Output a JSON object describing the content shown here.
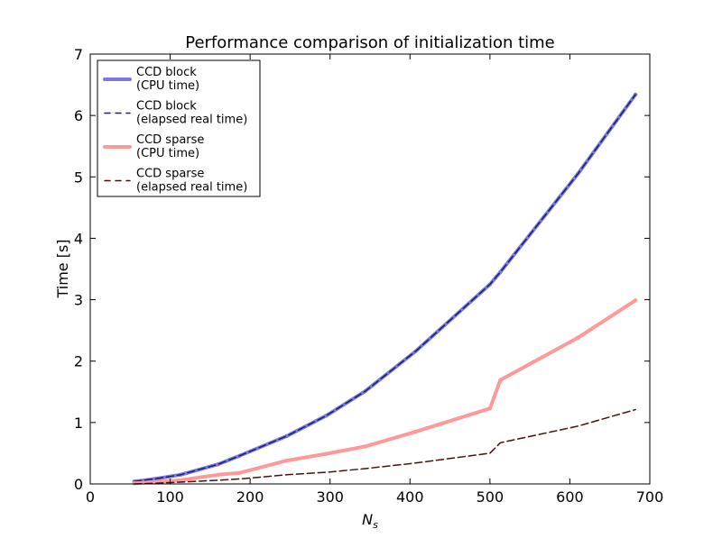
{
  "chart_data": {
    "type": "line",
    "title": "Performance comparison of initialization time",
    "xlabel": "N",
    "xlabel_sub": "s",
    "ylabel": "Time [s]",
    "xlim": [
      0,
      700
    ],
    "ylim": [
      0,
      7
    ],
    "xticks": [
      0,
      100,
      200,
      300,
      400,
      500,
      600,
      700
    ],
    "yticks": [
      0,
      1,
      2,
      3,
      4,
      5,
      6,
      7
    ],
    "grid": false,
    "legend_position": "top-left",
    "series": [
      {
        "name": "CCD block\n(CPU time)",
        "color": "#7b7bdd",
        "style": "solid-thick",
        "x": [
          55,
          80,
          113,
          160,
          187,
          246,
          295,
          344,
          407,
          500,
          513,
          610,
          682
        ],
        "y": [
          0.04,
          0.08,
          0.15,
          0.32,
          0.46,
          0.78,
          1.11,
          1.51,
          2.16,
          3.25,
          3.45,
          5.05,
          6.34
        ]
      },
      {
        "name": "CCD block\n(elapsed real time)",
        "color": "#1f1d6b",
        "style": "dashed",
        "x": [
          55,
          80,
          113,
          160,
          187,
          246,
          295,
          344,
          407,
          500,
          513,
          610,
          682
        ],
        "y": [
          0.04,
          0.08,
          0.15,
          0.32,
          0.46,
          0.78,
          1.11,
          1.51,
          2.16,
          3.25,
          3.45,
          5.05,
          6.34
        ]
      },
      {
        "name": "CCD sparse\n(CPU time)",
        "color": "#ff9999",
        "style": "solid-thick",
        "x": [
          55,
          80,
          113,
          160,
          187,
          246,
          295,
          344,
          407,
          500,
          513,
          610,
          682
        ],
        "y": [
          0.01,
          0.03,
          0.06,
          0.15,
          0.18,
          0.38,
          0.49,
          0.61,
          0.85,
          1.23,
          1.69,
          2.38,
          2.99
        ]
      },
      {
        "name": "CCD sparse\n(elapsed real time)",
        "color": "#4a0f0f",
        "style": "dashed",
        "x": [
          55,
          80,
          113,
          160,
          187,
          246,
          295,
          344,
          407,
          500,
          513,
          610,
          682
        ],
        "y": [
          0.0,
          0.01,
          0.03,
          0.06,
          0.08,
          0.15,
          0.19,
          0.25,
          0.34,
          0.5,
          0.67,
          0.94,
          1.21
        ]
      }
    ]
  }
}
